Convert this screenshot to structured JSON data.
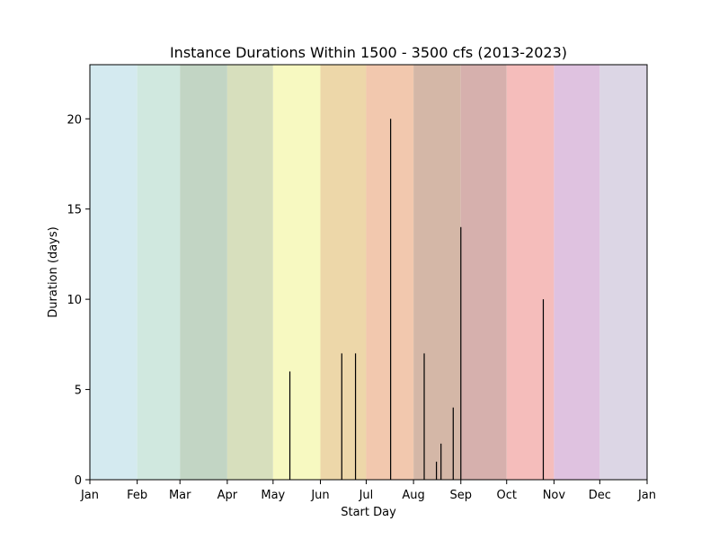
{
  "chart_data": {
    "type": "bar",
    "title": "Instance Durations Within 1500 - 3500 cfs (2013-2023)",
    "xlabel": "Start Day",
    "ylabel": "Duration (days)",
    "x_ticks": [
      "Jan",
      "Feb",
      "Mar",
      "Apr",
      "May",
      "Jun",
      "Jul",
      "Aug",
      "Sep",
      "Oct",
      "Nov",
      "Dec",
      "Jan"
    ],
    "y_ticks": [
      "0",
      "5",
      "10",
      "15",
      "20"
    ],
    "xlim": [
      "Jan 1",
      "Jan 1 (following year)"
    ],
    "ylim": [
      0,
      23
    ],
    "grid": false,
    "month_band_colors": [
      "#d4eaf0",
      "#d0e8df",
      "#c2d5c4",
      "#d7dfbd",
      "#f7f9c1",
      "#edd7a9",
      "#f2c8ae",
      "#d4b7a7",
      "#d6b0ad",
      "#f5bdbb",
      "#dfc2e0",
      "#dcd6e5"
    ],
    "bar_color": "#000000",
    "series": [
      {
        "points": [
          {
            "x": "May 12",
            "y": 6
          },
          {
            "x": "Jun 15",
            "y": 7
          },
          {
            "x": "Jun 24",
            "y": 7
          },
          {
            "x": "Jul 17",
            "y": 20
          },
          {
            "x": "Aug 8",
            "y": 7
          },
          {
            "x": "Aug 16",
            "y": 1
          },
          {
            "x": "Aug 19",
            "y": 2
          },
          {
            "x": "Aug 27",
            "y": 4
          },
          {
            "x": "Sep 1",
            "y": 14
          },
          {
            "x": "Oct 25",
            "y": 10
          }
        ]
      }
    ]
  }
}
